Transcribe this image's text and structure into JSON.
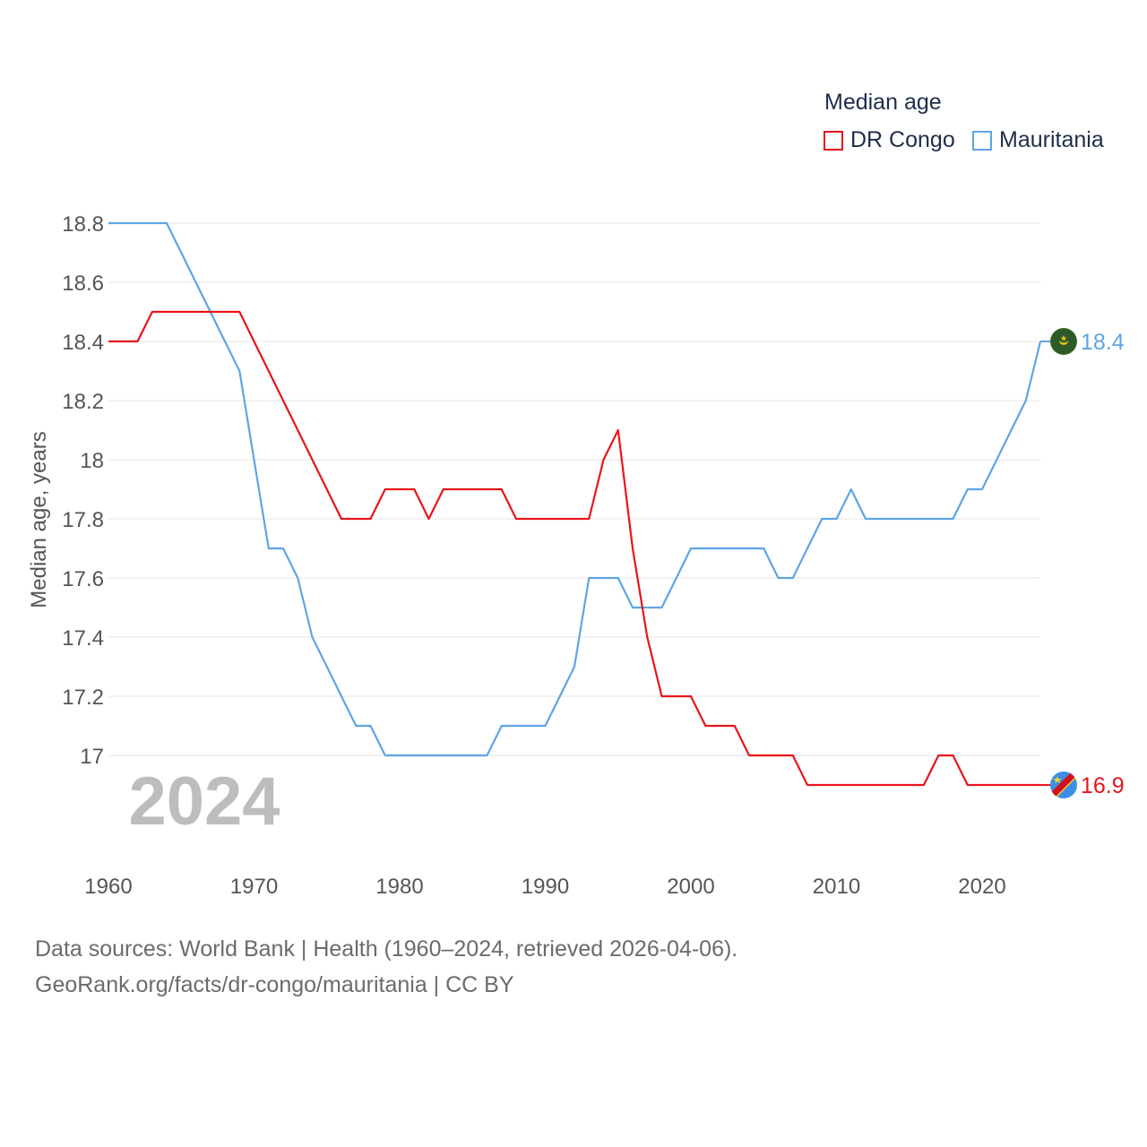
{
  "legend": {
    "title": "Median age",
    "items": [
      {
        "label": "DR Congo",
        "color": "#e8141b"
      },
      {
        "label": "Mauritania",
        "color": "#5da5e5"
      }
    ]
  },
  "year_label": "2024",
  "source": {
    "line1": "Data sources: World Bank | Health (1960–2024, retrieved 2026-04-06).",
    "line2": "GeoRank.org/facts/dr-congo/mauritania | CC BY"
  },
  "chart_data": {
    "type": "line",
    "title": "Median age",
    "xlabel": "",
    "ylabel": "Median age, years",
    "xlim": [
      1960,
      2024
    ],
    "ylim": [
      16.8,
      18.8
    ],
    "x_ticks": [
      1960,
      1970,
      1980,
      1990,
      2000,
      2010,
      2020
    ],
    "y_ticks": [
      17,
      17.2,
      17.4,
      17.6,
      17.8,
      18,
      18.2,
      18.4,
      18.6,
      18.8
    ],
    "y_tick_labels": [
      "17",
      "17.2",
      "17.4",
      "17.6",
      "17.8",
      "18",
      "18.2",
      "18.4",
      "18.6",
      "18.8"
    ],
    "grid": true,
    "x": [
      1960,
      1961,
      1962,
      1963,
      1964,
      1965,
      1966,
      1967,
      1968,
      1969,
      1970,
      1971,
      1972,
      1973,
      1974,
      1975,
      1976,
      1977,
      1978,
      1979,
      1980,
      1981,
      1982,
      1983,
      1984,
      1985,
      1986,
      1987,
      1988,
      1989,
      1990,
      1991,
      1992,
      1993,
      1994,
      1995,
      1996,
      1997,
      1998,
      1999,
      2000,
      2001,
      2002,
      2003,
      2004,
      2005,
      2006,
      2007,
      2008,
      2009,
      2010,
      2011,
      2012,
      2013,
      2014,
      2015,
      2016,
      2017,
      2018,
      2019,
      2020,
      2021,
      2022,
      2023,
      2024
    ],
    "series": [
      {
        "name": "DR Congo",
        "color": "#e8141b",
        "end_label": "16.9",
        "values": [
          18.4,
          18.4,
          18.4,
          18.5,
          18.5,
          18.5,
          18.5,
          18.5,
          18.5,
          18.5,
          18.4,
          18.3,
          18.2,
          18.1,
          18.0,
          17.9,
          17.8,
          17.8,
          17.8,
          17.9,
          17.9,
          17.9,
          17.8,
          17.9,
          17.9,
          17.9,
          17.9,
          17.9,
          17.8,
          17.8,
          17.8,
          17.8,
          17.8,
          17.8,
          18.0,
          18.1,
          17.7,
          17.4,
          17.2,
          17.2,
          17.2,
          17.1,
          17.1,
          17.1,
          17.0,
          17.0,
          17.0,
          17.0,
          16.9,
          16.9,
          16.9,
          16.9,
          16.9,
          16.9,
          16.9,
          16.9,
          16.9,
          17.0,
          17.0,
          16.9,
          16.9,
          16.9,
          16.9,
          16.9,
          16.9
        ]
      },
      {
        "name": "Mauritania",
        "color": "#5da5e5",
        "end_label": "18.4",
        "values": [
          18.8,
          18.8,
          18.8,
          18.8,
          18.8,
          18.7,
          18.6,
          18.5,
          18.4,
          18.3,
          18.0,
          17.7,
          17.7,
          17.6,
          17.4,
          17.3,
          17.2,
          17.1,
          17.1,
          17.0,
          17.0,
          17.0,
          17.0,
          17.0,
          17.0,
          17.0,
          17.0,
          17.1,
          17.1,
          17.1,
          17.1,
          17.2,
          17.3,
          17.6,
          17.6,
          17.6,
          17.5,
          17.5,
          17.5,
          17.6,
          17.7,
          17.7,
          17.7,
          17.7,
          17.7,
          17.7,
          17.6,
          17.6,
          17.7,
          17.8,
          17.8,
          17.9,
          17.8,
          17.8,
          17.8,
          17.8,
          17.8,
          17.8,
          17.8,
          17.9,
          17.9,
          18.0,
          18.1,
          18.2,
          18.4
        ]
      }
    ]
  }
}
